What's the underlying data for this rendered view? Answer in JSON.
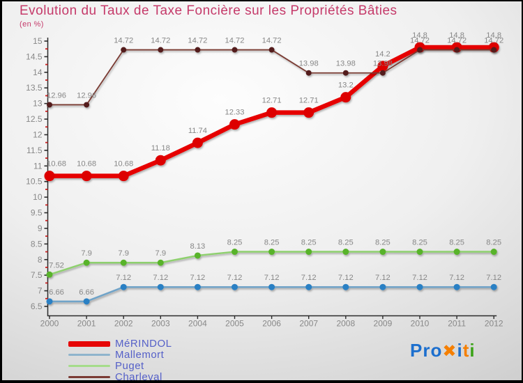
{
  "title": "Evolution du Taux de Taxe Foncière sur les Propriétés Bâties",
  "subtitle": "(en %)",
  "colors": {
    "title": "#c53a6a",
    "axis": "#2b2b2b",
    "tick_label": "#888888",
    "minor_tick": "#cc2222",
    "data_label": "#878787",
    "legend_text": "#5560c8",
    "background_edge": "#c6c6c6"
  },
  "chart_data": {
    "type": "line",
    "title": "Evolution du Taux de Taxe Foncière sur les Propriétés Bâties",
    "subtitle": "(en %)",
    "xlabel": "",
    "ylabel": "",
    "x": [
      2000,
      2001,
      2002,
      2003,
      2004,
      2005,
      2006,
      2007,
      2008,
      2009,
      2010,
      2011,
      2012
    ],
    "ylim": [
      6.5,
      15
    ],
    "yticks": [
      15,
      14.5,
      14,
      13.5,
      13,
      12.5,
      12,
      11.5,
      11,
      10.5,
      10,
      9.5,
      9,
      8.5,
      8,
      7.5,
      7,
      6.5
    ],
    "grid": false,
    "legend_position": "bottom-left",
    "series": [
      {
        "name": "MéRINDOL",
        "line_color": "#e60505",
        "marker_color": "#dd0202",
        "line_width": 6.5,
        "marker_radius": 7.5,
        "label_offset": 14,
        "values": [
          10.68,
          10.68,
          10.68,
          11.18,
          11.74,
          12.33,
          12.71,
          12.71,
          13.2,
          14.2,
          14.8,
          14.8,
          14.8
        ]
      },
      {
        "name": "Mallemort",
        "line_color": "#6fa3c8",
        "marker_color": "#2980c4",
        "line_width": 2.5,
        "marker_radius": 4.5,
        "label_offset": 10,
        "values": [
          6.66,
          6.66,
          7.12,
          7.12,
          7.12,
          7.12,
          7.12,
          7.12,
          7.12,
          7.12,
          7.12,
          7.12,
          7.12
        ]
      },
      {
        "name": "Puget",
        "line_color": "#8ed06e",
        "marker_color": "#58b32b",
        "line_width": 2.5,
        "marker_radius": 4.5,
        "label_offset": 10,
        "values": [
          7.52,
          7.9,
          7.9,
          7.9,
          8.13,
          8.25,
          8.25,
          8.25,
          8.25,
          8.25,
          8.25,
          8.25,
          8.25
        ]
      },
      {
        "name": "Charleval",
        "line_color": "#7a3a33",
        "marker_color": "#531c1c",
        "line_width": 1.8,
        "marker_radius": 4,
        "label_offset": 10,
        "values": [
          12.96,
          12.96,
          14.72,
          14.72,
          14.72,
          14.72,
          14.72,
          13.98,
          13.98,
          13.98,
          14.72,
          14.72,
          14.72
        ]
      }
    ]
  },
  "legend": {
    "items": [
      {
        "label": "MéRINDOL",
        "color": "#e60505",
        "thickness": 8
      },
      {
        "label": "Mallemort",
        "color": "#8fb4cc",
        "thickness": 3
      },
      {
        "label": "Puget",
        "color": "#a5dc8a",
        "thickness": 3
      },
      {
        "label": "Charleval",
        "color": "#7a3a33",
        "thickness": 3
      }
    ]
  },
  "logo": {
    "letters": [
      {
        "text": "Pro",
        "color": "#1c6fce",
        "size": 26
      },
      {
        "text": "✖",
        "color": "#f57f00",
        "size": 24
      },
      {
        "text": "i",
        "color": "#1c6fce",
        "size": 26
      },
      {
        "text": "t",
        "color": "#f57f00",
        "size": 26
      },
      {
        "text": "i",
        "color": "#3ba318",
        "size": 26
      }
    ]
  }
}
